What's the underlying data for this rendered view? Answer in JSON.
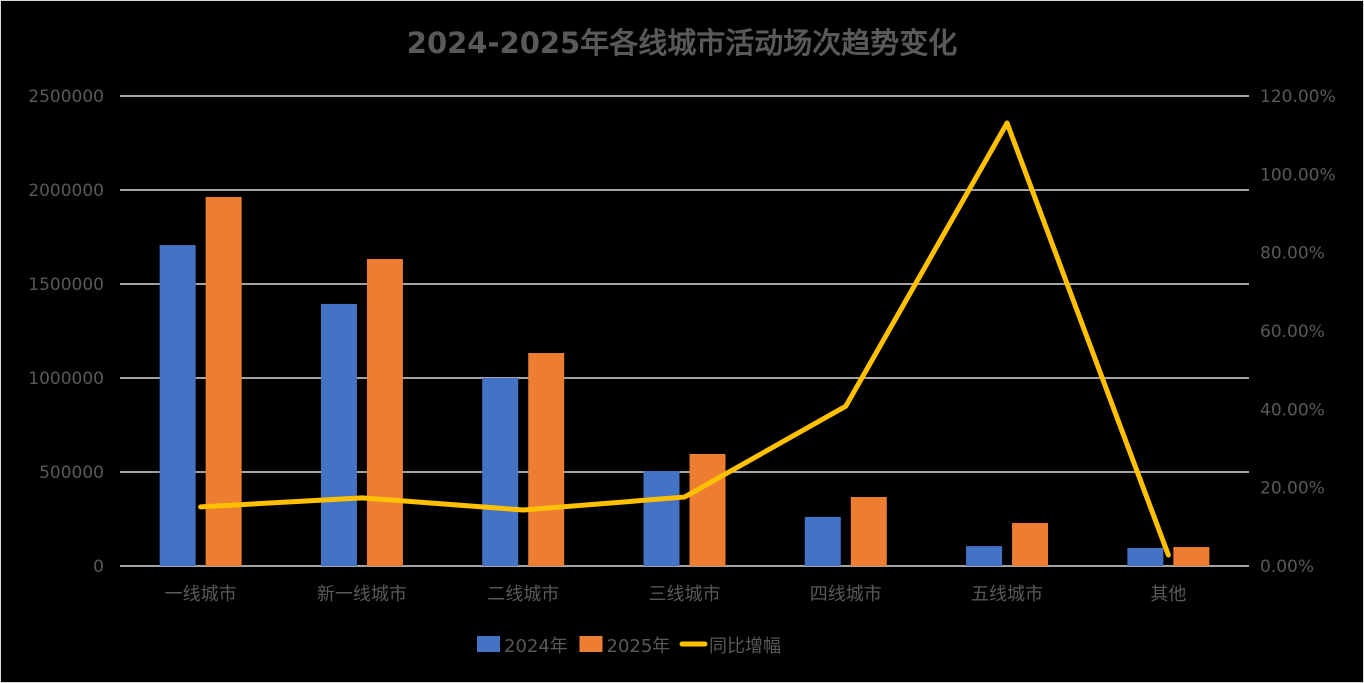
{
  "chart_data": {
    "type": "bar",
    "title": "2024-2025年各线城市活动场次趋势变化",
    "categories": [
      "一线城市",
      "新一线城市",
      "二线城市",
      "三线城市",
      "四线城市",
      "五线城市",
      "其他"
    ],
    "series": [
      {
        "name": "2024年",
        "type": "bar",
        "axis": "left",
        "color": "#4472C4",
        "values": [
          1707000,
          1394000,
          1000000,
          505000,
          261000,
          106000,
          96000
        ]
      },
      {
        "name": "2025年",
        "type": "bar",
        "axis": "left",
        "color": "#ED7D31",
        "values": [
          1963000,
          1633000,
          1133000,
          596000,
          367000,
          229000,
          101000
        ]
      },
      {
        "name": "同比增幅",
        "type": "line",
        "axis": "right",
        "color": "#FFC000",
        "values": [
          0.151,
          0.174,
          0.143,
          0.176,
          0.408,
          1.131,
          0.028
        ]
      }
    ],
    "y_left": {
      "min": 0,
      "max": 2500000,
      "ticks": [
        "0",
        "500000",
        "1000000",
        "1500000",
        "2000000",
        "2500000"
      ]
    },
    "y_right": {
      "min": 0,
      "max": 1.2,
      "ticks": [
        "0.00%",
        "20.00%",
        "40.00%",
        "60.00%",
        "80.00%",
        "100.00%",
        "120.00%"
      ]
    },
    "xlabel": "",
    "ylabel": "",
    "grid": true,
    "legend_position": "bottom"
  },
  "colors": {
    "background": "#000000",
    "grid": "#d9d9d9",
    "text": "#595959"
  }
}
